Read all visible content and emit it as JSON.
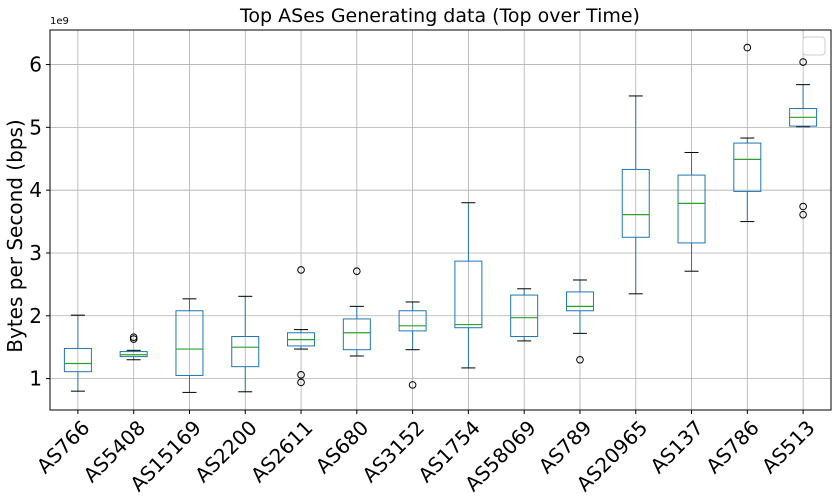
{
  "chart_data": {
    "type": "box",
    "title": "Top ASes Generating data (Top over Time)",
    "xlabel": "",
    "ylabel": "Bytes per Second (bps)",
    "y_scale_offset": "1e9",
    "ylim": [
      0.5,
      6.55
    ],
    "yticks": [
      1,
      2,
      3,
      4,
      5,
      6
    ],
    "grid": true,
    "legend": "top-right (empty)",
    "colors": {
      "box": "#1f77b4",
      "median": "#2ca02c",
      "whisker": "#000000",
      "grid": "#b0b0b0"
    },
    "categories": [
      "AS766",
      "AS5408",
      "AS15169",
      "AS2200",
      "AS2611",
      "AS680",
      "AS3152",
      "AS1754",
      "AS58069",
      "AS789",
      "AS20965",
      "AS137",
      "AS786",
      "AS513"
    ],
    "boxes": [
      {
        "label": "AS766",
        "whislo": 0.8,
        "q1": 1.11,
        "med": 1.24,
        "q3": 1.48,
        "whishi": 2.01,
        "fliers": []
      },
      {
        "label": "AS5408",
        "whislo": 1.3,
        "q1": 1.35,
        "med": 1.38,
        "q3": 1.43,
        "whishi": 1.45,
        "fliers": [
          1.63,
          1.66
        ]
      },
      {
        "label": "AS15169",
        "whislo": 0.78,
        "q1": 1.05,
        "med": 1.47,
        "q3": 2.08,
        "whishi": 2.27,
        "fliers": []
      },
      {
        "label": "AS2200",
        "whislo": 0.79,
        "q1": 1.19,
        "med": 1.5,
        "q3": 1.67,
        "whishi": 2.31,
        "fliers": []
      },
      {
        "label": "AS2611",
        "whislo": 1.47,
        "q1": 1.52,
        "med": 1.62,
        "q3": 1.73,
        "whishi": 1.78,
        "fliers": [
          2.73,
          1.06,
          0.94
        ]
      },
      {
        "label": "AS680",
        "whislo": 1.36,
        "q1": 1.46,
        "med": 1.73,
        "q3": 1.95,
        "whishi": 2.15,
        "fliers": [
          2.71
        ]
      },
      {
        "label": "AS3152",
        "whislo": 1.46,
        "q1": 1.76,
        "med": 1.84,
        "q3": 2.08,
        "whishi": 2.22,
        "fliers": [
          0.9
        ]
      },
      {
        "label": "AS1754",
        "whislo": 1.17,
        "q1": 1.81,
        "med": 1.86,
        "q3": 2.87,
        "whishi": 3.8,
        "fliers": []
      },
      {
        "label": "AS58069",
        "whislo": 1.6,
        "q1": 1.67,
        "med": 1.97,
        "q3": 2.33,
        "whishi": 2.43,
        "fliers": []
      },
      {
        "label": "AS789",
        "whislo": 1.72,
        "q1": 2.08,
        "med": 2.15,
        "q3": 2.38,
        "whishi": 2.57,
        "fliers": [
          1.3
        ]
      },
      {
        "label": "AS20965",
        "whislo": 2.35,
        "q1": 3.25,
        "med": 3.61,
        "q3": 4.33,
        "whishi": 5.5,
        "fliers": []
      },
      {
        "label": "AS137",
        "whislo": 2.71,
        "q1": 3.16,
        "med": 3.79,
        "q3": 4.24,
        "whishi": 4.6,
        "fliers": []
      },
      {
        "label": "AS786",
        "whislo": 3.5,
        "q1": 3.98,
        "med": 4.49,
        "q3": 4.75,
        "whishi": 4.83,
        "fliers": [
          6.27
        ]
      },
      {
        "label": "AS513",
        "whislo": 5.01,
        "q1": 5.02,
        "med": 5.16,
        "q3": 5.3,
        "whishi": 5.68,
        "fliers": [
          6.04,
          3.74,
          3.61
        ]
      }
    ]
  }
}
